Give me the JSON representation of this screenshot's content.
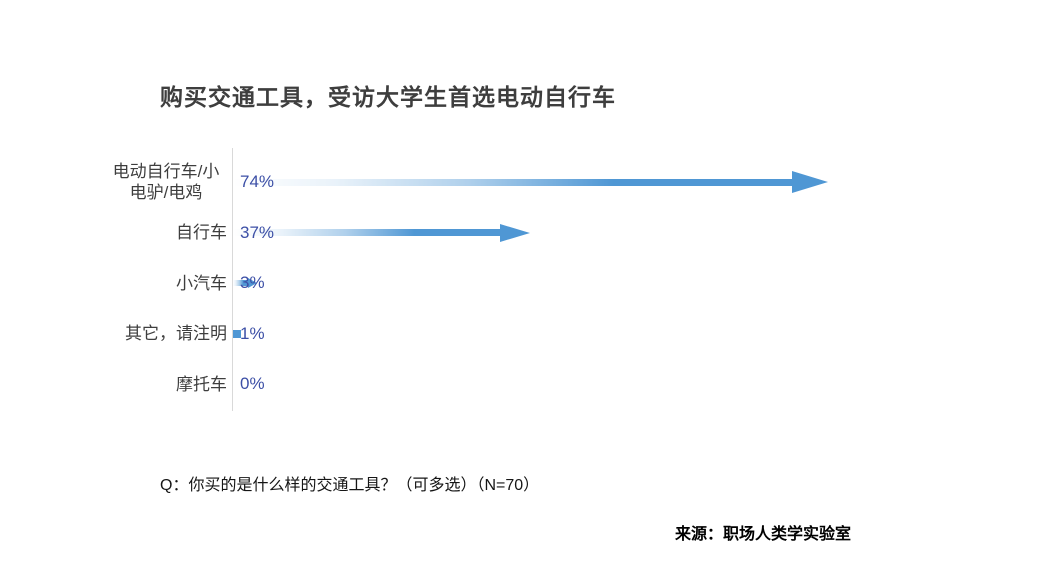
{
  "chart_data": {
    "type": "bar",
    "orientation": "horizontal",
    "bar_style": "gradient-arrow",
    "title": "购买交通工具，受访大学生首选电动自行车",
    "categories": [
      "电动自行车/小电驴/电鸡",
      "自行车",
      "小汽车",
      "其它，请注明",
      "摩托车"
    ],
    "values": [
      74,
      37,
      3,
      1,
      0
    ],
    "value_labels": [
      "74%",
      "37%",
      "3%",
      "1%",
      "0%"
    ],
    "xlim": [
      0,
      100
    ],
    "unit": "%",
    "grid": false,
    "legend": false,
    "colors": {
      "bar_blue": "#4f97d4",
      "value_text": "#3c4fa6",
      "category_text": "#3e3e3e",
      "title_text": "#3e3e3e",
      "axis_line": "#d9d9d9",
      "background": "#ffffff"
    }
  },
  "footnote": "Q：你买的是什么样的交通工具？（可多选）（N=70）",
  "source": "来源：职场人类学实验室"
}
